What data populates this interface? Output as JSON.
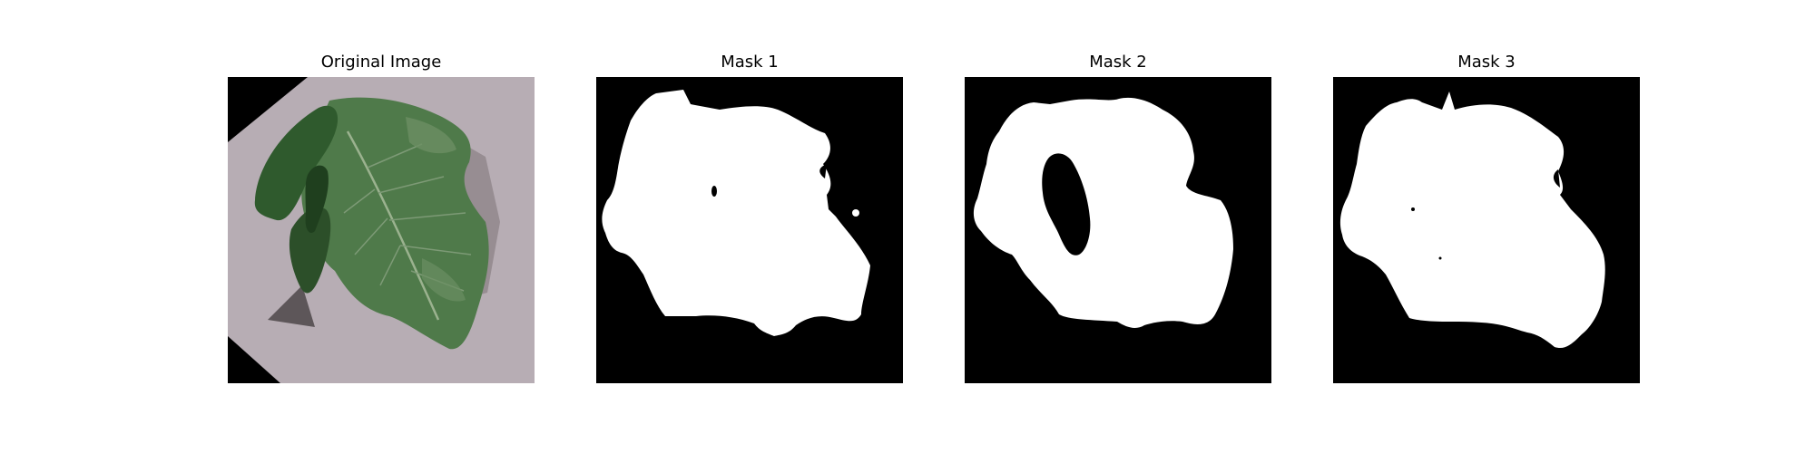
{
  "figure": {
    "background": "#ffffff",
    "panels": [
      {
        "title": "Original Image",
        "kind": "photo"
      },
      {
        "title": "Mask 1",
        "kind": "mask"
      },
      {
        "title": "Mask 2",
        "kind": "mask"
      },
      {
        "title": "Mask 3",
        "kind": "mask"
      }
    ]
  },
  "colors": {
    "mask_background": "#000000",
    "mask_foreground": "#ffffff",
    "paper": "#b7adb4",
    "leaf_dark": "#2f5a2d",
    "leaf_mid": "#4f7a4a",
    "leaf_light": "#7d9a76",
    "shadow": "#5d5659"
  }
}
